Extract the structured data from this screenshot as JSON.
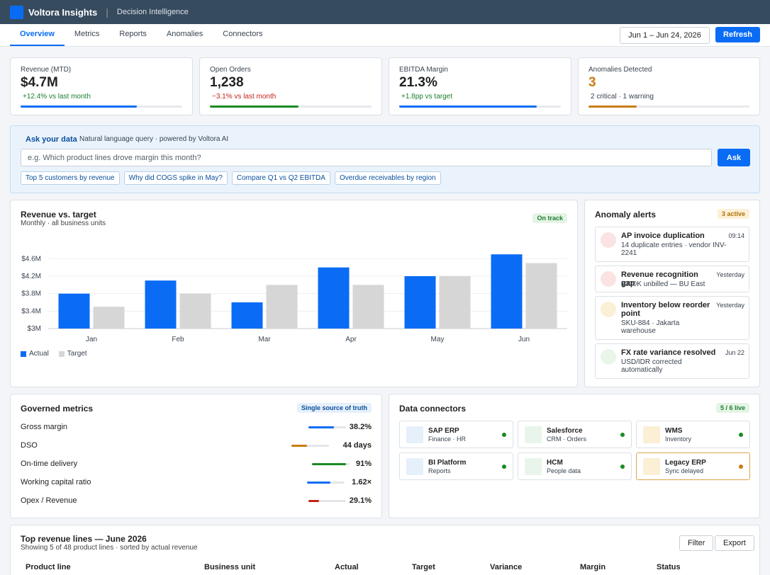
{
  "app": {
    "name": "Voltora Insights",
    "subtitle": "Decision Intelligence"
  },
  "nav": {
    "tabs": [
      "Overview",
      "Metrics",
      "Reports",
      "Anomalies",
      "Connectors"
    ],
    "active": "Overview",
    "date_range": "Jun 1 – Jun 24, 2026",
    "refresh_label": "Refresh"
  },
  "kpis": [
    {
      "label": "Revenue (MTD)",
      "value": "$4.7M",
      "delta": "+12.4% vs last month",
      "delta_color": "#1a7f2e",
      "bar_color": "#0a6cf5",
      "progress": 0.72
    },
    {
      "label": "Open Orders",
      "value": "1,238",
      "delta": "−3.1% vs last month",
      "delta_color": "#c4231a",
      "bar_color": "#1a8a24",
      "progress": 0.55
    },
    {
      "label": "EBITDA Margin",
      "value": "21.3%",
      "delta": "+1.8pp vs target",
      "delta_color": "#1a7f2e",
      "bar_color": "#0a6cf5",
      "progress": 0.85
    },
    {
      "label": "Anomalies Detected",
      "value": "3",
      "value_color": "#c97d12",
      "delta": "2 critical · 1 warning",
      "delta_color": "#3a4450",
      "bar_color": "#c97d12",
      "progress": 0.3
    }
  ],
  "ask": {
    "title": "Ask your data",
    "subtitle": "Natural language query · powered by Voltora AI",
    "placeholder": "e.g. Which product lines drove margin this month?",
    "button": "Ask",
    "suggestions": [
      "Top 5 customers by revenue",
      "Why did COGS spike in May?",
      "Compare Q1 vs Q2 EBITDA",
      "Overdue receivables by region"
    ]
  },
  "revenue_chart": {
    "title": "Revenue vs. target",
    "subtitle": "Monthly · all business units",
    "status": "On track"
  },
  "chart_data": {
    "type": "bar",
    "categories": [
      "Jan",
      "Feb",
      "Mar",
      "Apr",
      "May",
      "Jun"
    ],
    "series": [
      {
        "name": "Actual",
        "color": "#0a6cf5",
        "values": [
          3.8,
          4.1,
          3.6,
          4.4,
          4.2,
          4.7
        ]
      },
      {
        "name": "Target",
        "color": "#d6d6d6",
        "values": [
          3.5,
          3.8,
          4.0,
          4.0,
          4.2,
          4.5
        ]
      }
    ],
    "y_ticks": [
      "$4.6M",
      "$4.2M",
      "$3.8M",
      "$3.4M",
      "$3M"
    ],
    "y_tick_values": [
      4.6,
      4.2,
      3.8,
      3.4,
      3.0
    ],
    "ylim": [
      3.0,
      4.8
    ],
    "grid": true,
    "legend": "bottom-left"
  },
  "alerts": {
    "title": "Anomaly alerts",
    "badge": "3 active",
    "items": [
      {
        "title": "AP invoice duplication",
        "desc": "14 duplicate entries · vendor INV-2241",
        "time": "09:14",
        "color": "#fbe3e3"
      },
      {
        "title": "Revenue recognition gap",
        "desc": "$320K unbilled — BU East",
        "time": "Yesterday",
        "color": "#fbe3e3"
      },
      {
        "title": "Inventory below reorder point",
        "desc": "SKU-884 · Jakarta warehouse",
        "time": "Yesterday",
        "color": "#fbefd6"
      },
      {
        "title": "FX rate variance resolved",
        "desc": "USD/IDR corrected automatically",
        "time": "Jun 22",
        "color": "#eaf5ea"
      }
    ]
  },
  "metrics": {
    "title": "Governed metrics",
    "badge": "Single source of truth",
    "rows": [
      {
        "name": "Gross margin",
        "value": "38.2%",
        "fill": 0.68,
        "color": "#0a6cf5"
      },
      {
        "name": "DSO",
        "value": "44 days",
        "fill": 0.42,
        "color": "#c97d12"
      },
      {
        "name": "On-time delivery",
        "value": "91%",
        "fill": 0.91,
        "color": "#1a8a24"
      },
      {
        "name": "Working capital ratio",
        "value": "1.62×",
        "fill": 0.62,
        "color": "#0a6cf5"
      },
      {
        "name": "Opex / Revenue",
        "value": "29.1%",
        "fill": 0.29,
        "color": "#c4231a"
      }
    ]
  },
  "connectors": {
    "title": "Data connectors",
    "badge": "5 / 6 live",
    "items": [
      {
        "name": "SAP ERP",
        "sub": "Finance · HR",
        "icon_color": "#e6f0fb",
        "status_color": "#1a8a24"
      },
      {
        "name": "Salesforce",
        "sub": "CRM · Orders",
        "icon_color": "#e9f5ea",
        "status_color": "#1a8a24"
      },
      {
        "name": "WMS",
        "sub": "Inventory",
        "icon_color": "#fbefd6",
        "status_color": "#1a8a24"
      },
      {
        "name": "BI Platform",
        "sub": "Reports",
        "icon_color": "#e6f0fb",
        "status_color": "#1a8a24"
      },
      {
        "name": "HCM",
        "sub": "People data",
        "icon_color": "#e9f5ea",
        "status_color": "#1a8a24"
      },
      {
        "name": "Legacy ERP",
        "sub": "Sync delayed",
        "icon_color": "#fbefd6",
        "status_color": "#c97d12",
        "warning": true
      }
    ]
  },
  "table": {
    "title": "Top revenue lines — June 2026",
    "subtitle": "Showing 5 of 48 product lines · sorted by actual revenue",
    "filter_label": "Filter",
    "export_label": "Export",
    "columns": [
      "Product line",
      "Business unit",
      "Actual",
      "Target",
      "Variance",
      "Margin",
      "Status"
    ]
  }
}
